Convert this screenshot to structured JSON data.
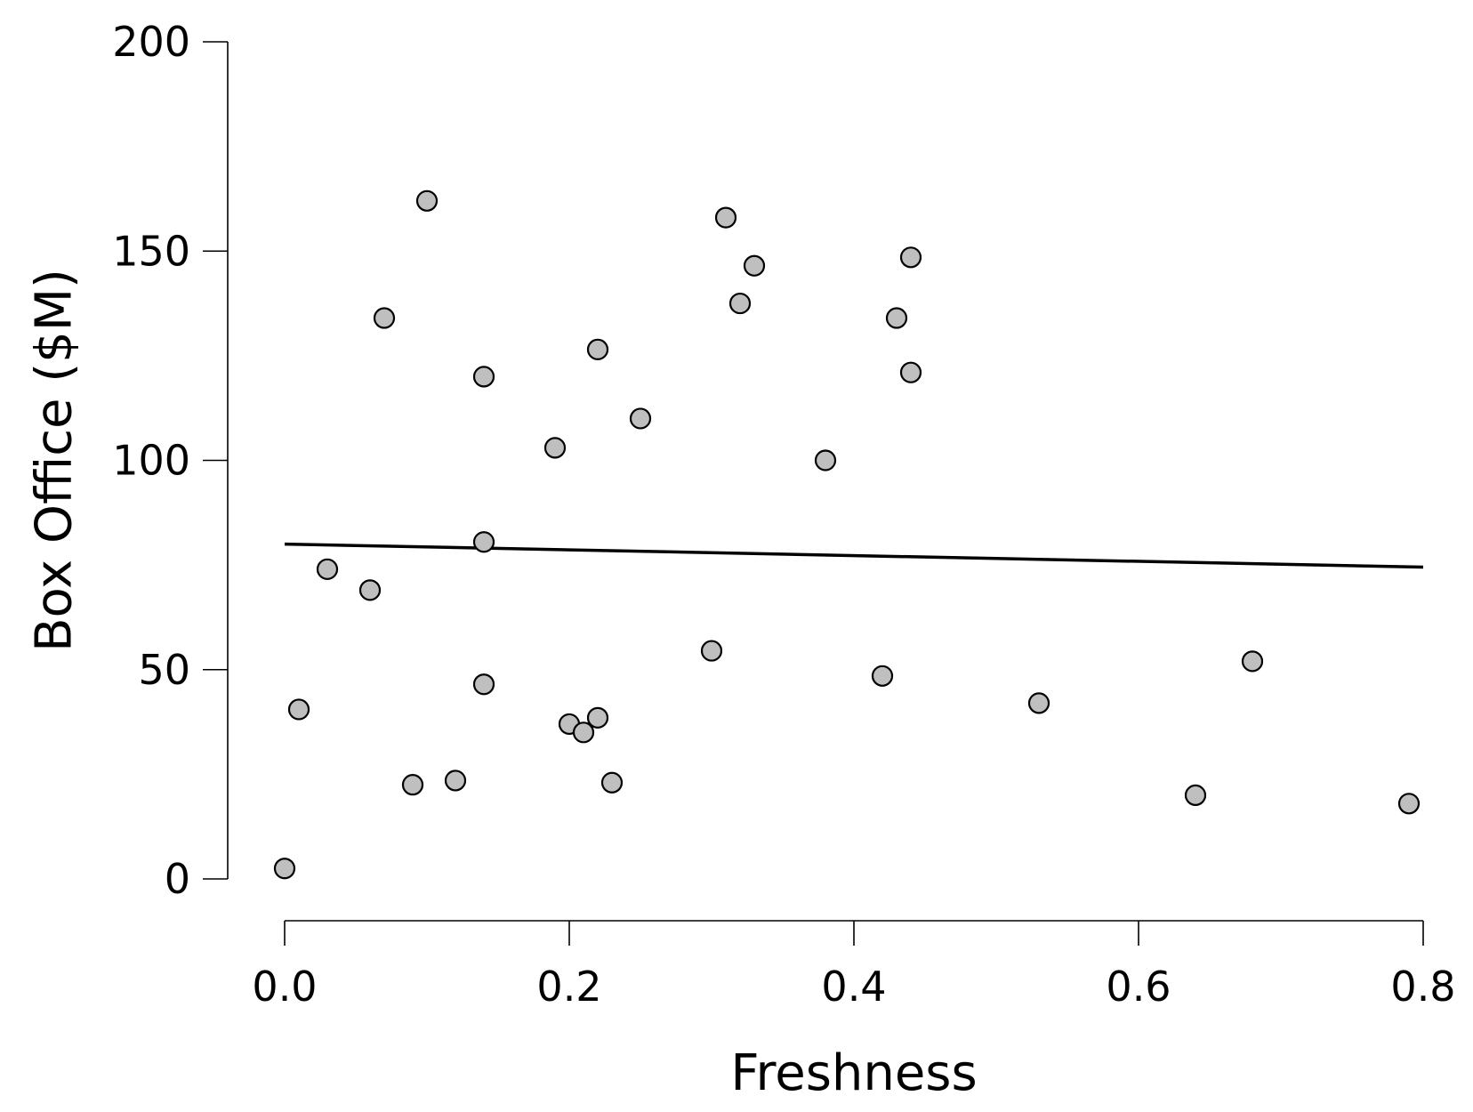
{
  "chart_data": {
    "type": "scatter",
    "title": "",
    "xlabel": "Freshness",
    "ylabel": "Box Office ($M)",
    "xlim": [
      0.0,
      0.8
    ],
    "ylim": [
      0,
      200
    ],
    "x_ticks": [
      0.0,
      0.2,
      0.4,
      0.6,
      0.8
    ],
    "x_tick_labels": [
      "0.0",
      "0.2",
      "0.4",
      "0.6",
      "0.8"
    ],
    "y_ticks": [
      0,
      50,
      100,
      150,
      200
    ],
    "y_tick_labels": [
      "0",
      "50",
      "100",
      "150",
      "200"
    ],
    "grid": false,
    "point_color": "#bfbfbf",
    "point_edge_color": "#000000",
    "series": [
      {
        "points": [
          {
            "x": 0.0,
            "y": 2.5
          },
          {
            "x": 0.01,
            "y": 40.5
          },
          {
            "x": 0.03,
            "y": 74.0
          },
          {
            "x": 0.06,
            "y": 69.0
          },
          {
            "x": 0.07,
            "y": 134.0
          },
          {
            "x": 0.09,
            "y": 22.5
          },
          {
            "x": 0.1,
            "y": 162.0
          },
          {
            "x": 0.12,
            "y": 23.5
          },
          {
            "x": 0.14,
            "y": 120.0
          },
          {
            "x": 0.14,
            "y": 80.5
          },
          {
            "x": 0.14,
            "y": 46.5
          },
          {
            "x": 0.19,
            "y": 103.0
          },
          {
            "x": 0.2,
            "y": 37.0
          },
          {
            "x": 0.21,
            "y": 35.0
          },
          {
            "x": 0.22,
            "y": 126.5
          },
          {
            "x": 0.22,
            "y": 38.5
          },
          {
            "x": 0.23,
            "y": 23.0
          },
          {
            "x": 0.25,
            "y": 110.0
          },
          {
            "x": 0.3,
            "y": 54.5
          },
          {
            "x": 0.31,
            "y": 158.0
          },
          {
            "x": 0.32,
            "y": 137.5
          },
          {
            "x": 0.33,
            "y": 146.5
          },
          {
            "x": 0.38,
            "y": 100.0
          },
          {
            "x": 0.42,
            "y": 48.5
          },
          {
            "x": 0.43,
            "y": 134.0
          },
          {
            "x": 0.44,
            "y": 148.5
          },
          {
            "x": 0.44,
            "y": 121.0
          },
          {
            "x": 0.53,
            "y": 42.0
          },
          {
            "x": 0.64,
            "y": 20.0
          },
          {
            "x": 0.68,
            "y": 52.0
          },
          {
            "x": 0.79,
            "y": 18.0
          }
        ]
      }
    ],
    "trend_line": {
      "x": [
        0.0,
        0.8
      ],
      "y": [
        80.0,
        74.5
      ]
    }
  }
}
